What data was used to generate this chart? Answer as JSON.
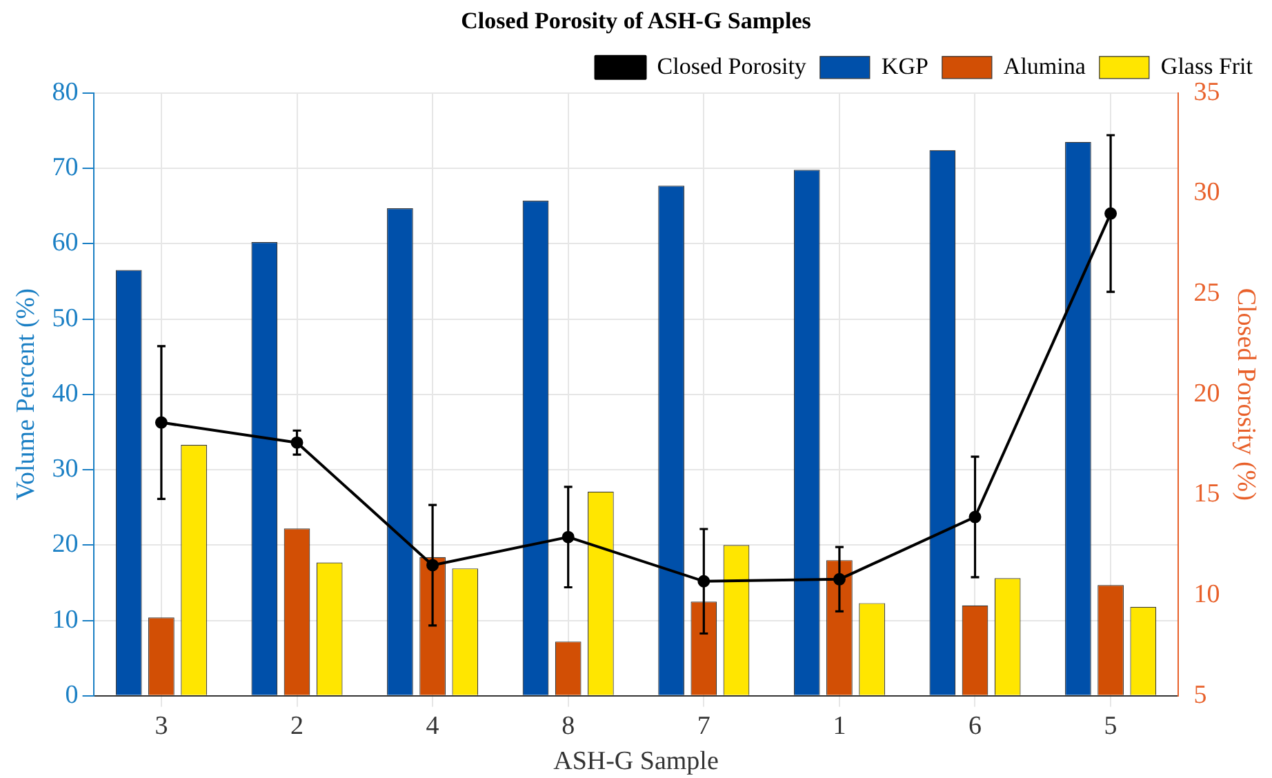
{
  "chart_data": {
    "type": "bar",
    "title": "Closed Porosity of ASH-G Samples",
    "xlabel": "ASH-G Sample",
    "ylabel": "Volume Percent (%)",
    "y2label": "Closed Porosity (%)",
    "categories": [
      "3",
      "2",
      "4",
      "8",
      "7",
      "1",
      "6",
      "5"
    ],
    "series": [
      {
        "name": "KGP",
        "color": "#0050aa",
        "values": [
          56.5,
          60.2,
          64.7,
          65.7,
          67.7,
          69.8,
          72.4,
          73.5
        ]
      },
      {
        "name": "Alumina",
        "color": "#d24f05",
        "values": [
          10.4,
          22.2,
          18.4,
          7.2,
          12.5,
          18.0,
          12.0,
          14.7
        ]
      },
      {
        "name": "Glass Frit",
        "color": "#ffe600",
        "values": [
          33.3,
          17.7,
          16.9,
          27.1,
          20.0,
          12.3,
          15.6,
          11.8
        ]
      },
      {
        "name": "Closed Porosity",
        "type": "line",
        "axis": "y2",
        "color": "#000000",
        "marker": "circle",
        "values": [
          18.6,
          17.6,
          11.5,
          12.9,
          10.7,
          10.8,
          13.9,
          29.0
        ],
        "errors": [
          3.8,
          0.6,
          3.0,
          2.5,
          2.6,
          1.6,
          3.0,
          3.9
        ]
      }
    ],
    "ylim": [
      0,
      80
    ],
    "yticks": [
      0,
      10,
      20,
      30,
      40,
      50,
      60,
      70,
      80
    ],
    "y2lim": [
      5,
      35
    ],
    "y2ticks": [
      5,
      10,
      15,
      20,
      25,
      30,
      35
    ],
    "grid": true,
    "legend": "top right"
  }
}
